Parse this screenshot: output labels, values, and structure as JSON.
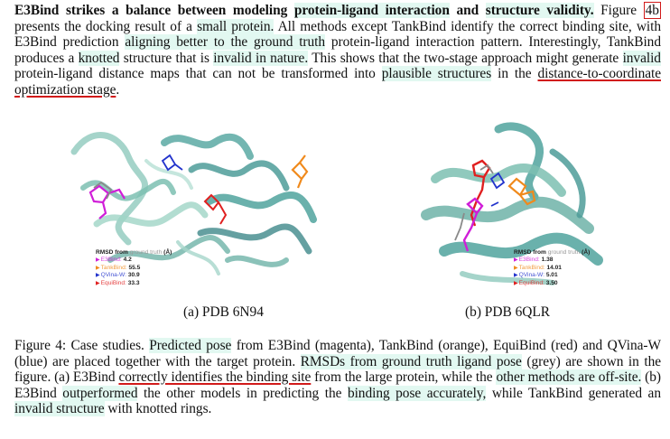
{
  "top_paragraph": {
    "heading": "E3Bind strikes a balance between modeling",
    "heading_hl1": "protein-ligand interaction",
    "heading_and": "and",
    "heading_hl2": "structure validity.",
    "t1": "Figure",
    "fig_ref": "4b",
    "t2": "presents the docking result of a",
    "hl_small": "small protein.",
    "t3": "All methods except TankBind identify the correct binding site, with E3Bind prediction",
    "hl_align": "aligning better to the ground truth",
    "t4": "protein-ligand interaction pattern. Interestingly, TankBind produces a",
    "hl_knotted": "knotted",
    "t5": "structure that is",
    "hl_invalid_nature": "invalid in nature.",
    "t6": "This shows that the two-stage approach might generate",
    "hl_invalid": "invalid",
    "t7": "protein-ligand distance maps that can not be transformed into",
    "hl_plausible": "plausible structures",
    "t8": "in the",
    "ul_stage": "distance-to-coordinate optimization stage",
    "t9": "."
  },
  "panel_a": {
    "label": "(a) PDB 6N94",
    "legend": {
      "title": "RMSD from",
      "title_faint": "ground truth",
      "title_end": "(Å)",
      "rows": [
        {
          "name": "E3Bind:",
          "value": "4.2",
          "color": "#d01ed8"
        },
        {
          "name": "TankBind:",
          "value": "55.5",
          "color": "#f08a1c"
        },
        {
          "name": "QVina-W:",
          "value": "30.9",
          "color": "#2233cc"
        },
        {
          "name": "EquiBind:",
          "value": "33.3",
          "color": "#e02020"
        }
      ]
    }
  },
  "panel_b": {
    "label": "(b) PDB 6QLR",
    "legend": {
      "title": "RMSD from",
      "title_faint": "ground truth",
      "title_end": "(Å)",
      "rows": [
        {
          "name": "E3Bind:",
          "value": "1.38",
          "color": "#d01ed8"
        },
        {
          "name": "TankBind:",
          "value": "14.01",
          "color": "#f08a1c"
        },
        {
          "name": "QVina-W:",
          "value": "5.01",
          "color": "#2233cc"
        },
        {
          "name": "EquiBind:",
          "value": "3.50",
          "color": "#e02020"
        }
      ]
    }
  },
  "caption": {
    "c1": "Figure 4: Case studies.",
    "hl_pred": "Predicted pose",
    "c2": "from E3Bind (magenta), TankBind (orange), EquiBind (red) and QVina-W (blue) are placed together with the target protein.",
    "hl_rmsd": "RMSDs from ground truth ligand pose",
    "c3": "(grey) are shown in the figure. (a) E3Bind",
    "ul_correct": "correctly identifies the binding site",
    "c4": "from the large protein, while the",
    "hl_other": "other methods are off-site.",
    "c5": "(b) E3Bind",
    "hl_outperformed": "outperformed",
    "c6": "the other models in predicting the",
    "hl_binding": "binding pose accurately,",
    "c7": "while TankBind generated an",
    "hl_invalid_structure": "invalid structure",
    "c8": "with knotted rings."
  },
  "colors": {
    "highlight": "#e2f8f1",
    "underline_red": "#d11a1a",
    "protein_teal": "#5aa9a3",
    "ligand_grey": "#8a8a8a"
  }
}
